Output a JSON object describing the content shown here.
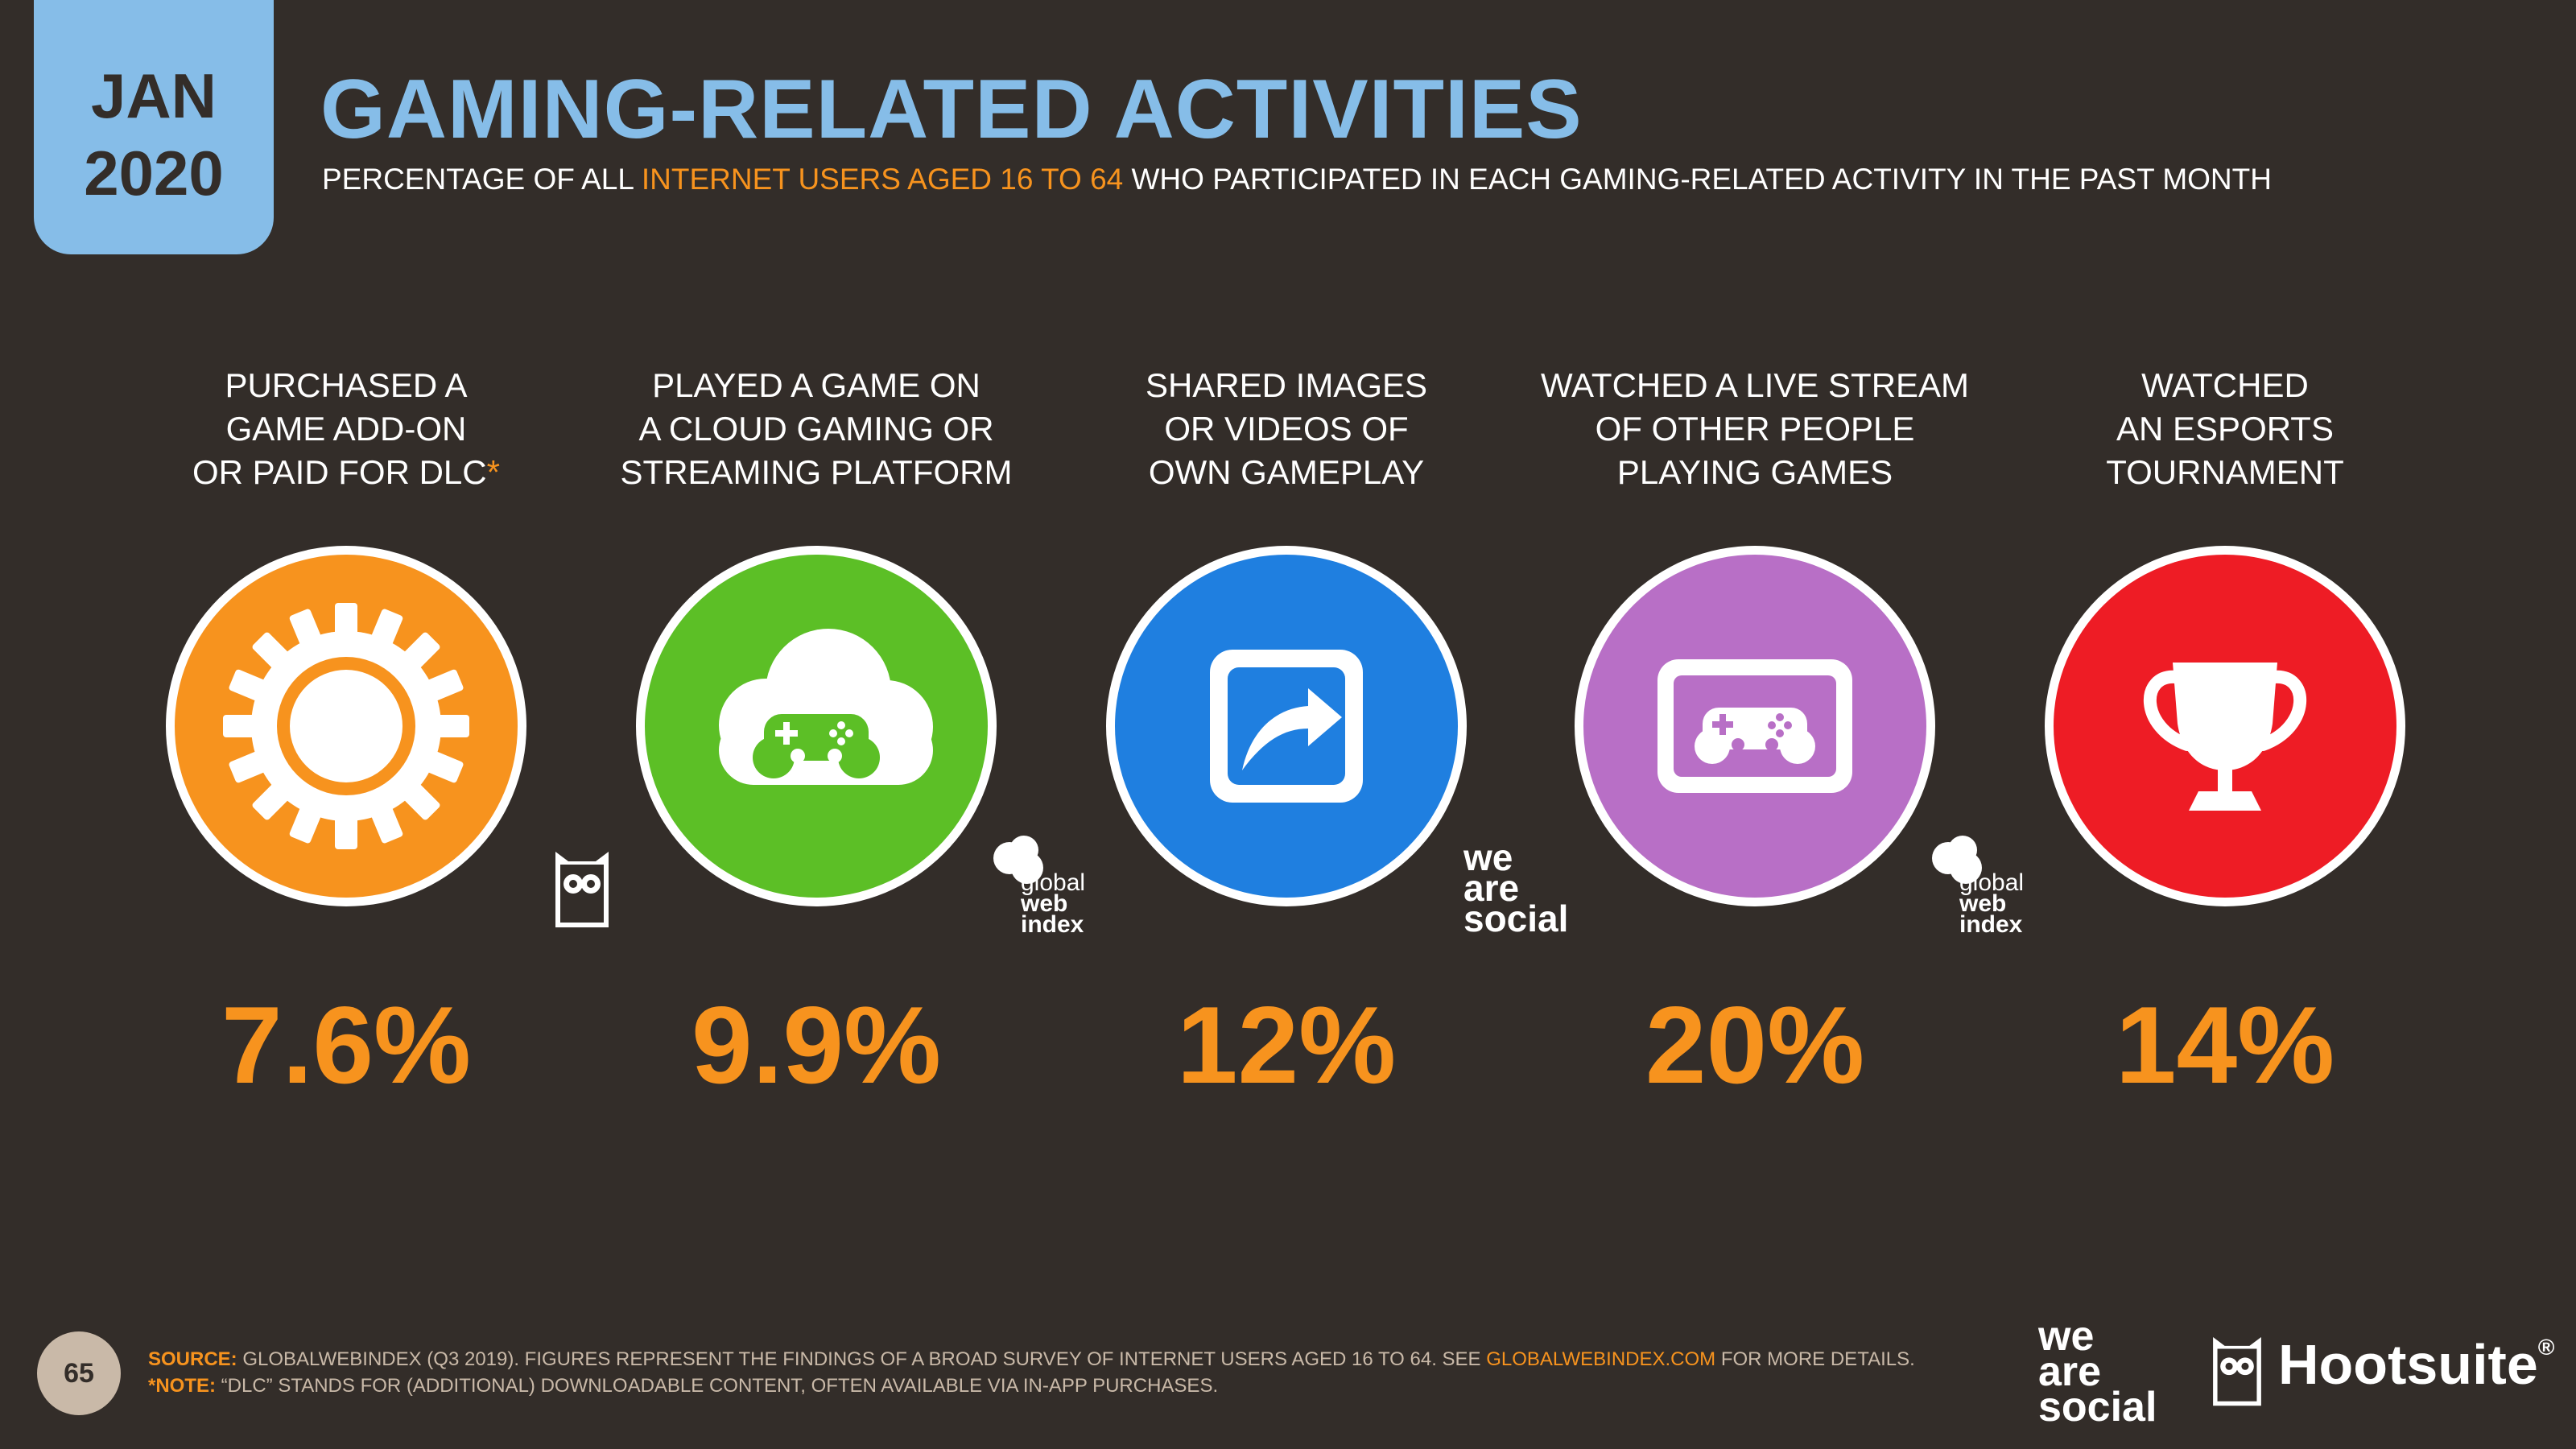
{
  "badge": {
    "month": "JAN",
    "year": "2020"
  },
  "title": "GAMING-RELATED ACTIVITIES",
  "subtitle": {
    "pre": "PERCENTAGE OF ALL ",
    "highlight": "INTERNET USERS AGED 16 TO 64",
    "post": " WHO PARTICIPATED IN EACH GAMING-RELATED ACTIVITY IN THE PAST MONTH"
  },
  "activities": [
    {
      "lines": [
        "PURCHASED A",
        "GAME ADD-ON",
        "OR PAID FOR DLC"
      ],
      "star": "*",
      "value": "7.6%",
      "color": "#f7931e",
      "icon": "gear-icon",
      "logo": "hootsuite-owl-icon"
    },
    {
      "lines": [
        "PLAYED A GAME ON",
        "A CLOUD GAMING OR",
        "STREAMING PLATFORM"
      ],
      "value": "9.9%",
      "color": "#5cbf26",
      "icon": "cloud-gamepad-icon",
      "logo": "globalwebindex-logo"
    },
    {
      "lines": [
        "SHARED IMAGES",
        "OR VIDEOS OF",
        "OWN GAMEPLAY"
      ],
      "value": "12%",
      "color": "#1f7fe0",
      "icon": "share-arrow-icon",
      "logo": "we-are-social-logo"
    },
    {
      "lines": [
        "WATCHED A LIVE STREAM",
        "OF OTHER PEOPLE",
        "PLAYING GAMES"
      ],
      "value": "20%",
      "color": "#b86fc6",
      "icon": "screen-gamepad-icon",
      "logo": "globalwebindex-logo"
    },
    {
      "lines": [
        "WATCHED",
        "AN ESPORTS",
        "TOURNAMENT"
      ],
      "value": "14%",
      "color": "#ee1c25",
      "icon": "trophy-icon",
      "logo": ""
    }
  ],
  "logos": {
    "gwi": [
      "global",
      "web",
      "index"
    ],
    "was": [
      "we",
      "are",
      "social"
    ],
    "hootsuite": "Hootsuite",
    "trademark": "®"
  },
  "footer": {
    "page": "65",
    "source_key": "SOURCE:",
    "source_text": " GLOBALWEBINDEX (Q3 2019). FIGURES REPRESENT THE FINDINGS OF A BROAD SURVEY OF INTERNET USERS AGED 16 TO 64. SEE ",
    "source_link": "GLOBALWEBINDEX.COM",
    "source_tail": " FOR MORE DETAILS.",
    "note_key": "*NOTE:",
    "note_text": " “DLC” STANDS FOR (ADDITIONAL) DOWNLOADABLE CONTENT, OFTEN AVAILABLE VIA IN-APP PURCHASES."
  }
}
